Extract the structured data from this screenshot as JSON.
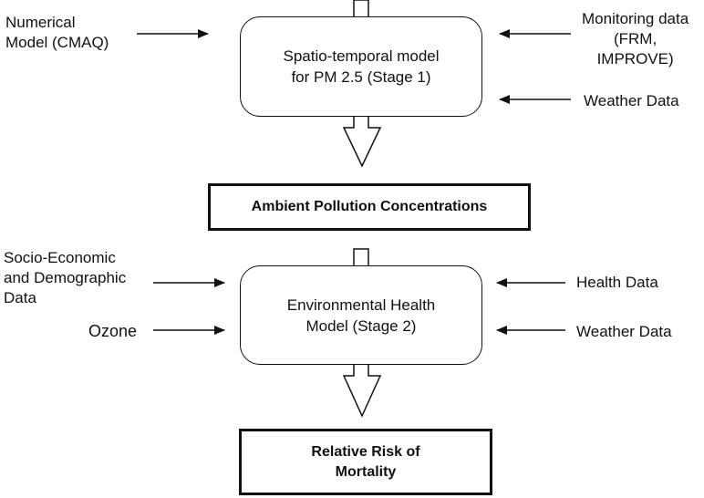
{
  "stage1": {
    "box": "Spatio-temporal model\nfor  PM 2.5  (Stage 1)",
    "inputs_left": [
      "Numerical\nModel (CMAQ)"
    ],
    "inputs_right": [
      "Monitoring data\n(FRM,\nIMPROVE)",
      "Weather Data"
    ]
  },
  "intermediate": {
    "label": "Ambient Pollution Concentrations"
  },
  "stage2": {
    "box": "Environmental Health\nModel (Stage 2)",
    "inputs_left": [
      "Socio-Economic\nand Demographic\nData",
      "Ozone"
    ],
    "inputs_right": [
      "Health Data",
      "Weather Data"
    ]
  },
  "output": {
    "label": "Relative Risk of\nMortality"
  }
}
